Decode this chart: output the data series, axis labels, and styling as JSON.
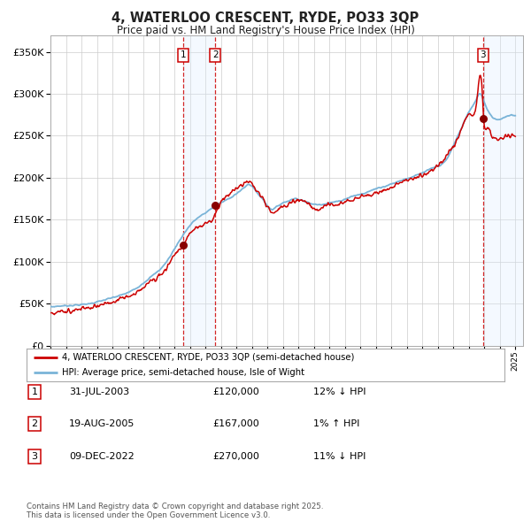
{
  "title": "4, WATERLOO CRESCENT, RYDE, PO33 3QP",
  "subtitle": "Price paid vs. HM Land Registry's House Price Index (HPI)",
  "sale_years_float": [
    2003.583,
    2005.633,
    2022.917
  ],
  "sale_prices": [
    120000,
    167000,
    270000
  ],
  "sale_labels": [
    "1",
    "2",
    "3"
  ],
  "sale_hpi_diff": [
    "12% ↓ HPI",
    "1% ↑ HPI",
    "11% ↓ HPI"
  ],
  "sale_display_dates": [
    "31-JUL-2003",
    "19-AUG-2005",
    "09-DEC-2022"
  ],
  "sale_prices_display": [
    "£120,000",
    "£167,000",
    "£270,000"
  ],
  "legend_line1": "4, WATERLOO CRESCENT, RYDE, PO33 3QP (semi-detached house)",
  "legend_line2": "HPI: Average price, semi-detached house, Isle of Wight",
  "footnote": "Contains HM Land Registry data © Crown copyright and database right 2025.\nThis data is licensed under the Open Government Licence v3.0.",
  "hpi_color": "#7ab4d8",
  "price_color": "#cc0000",
  "dot_color": "#880000",
  "vline_color": "#cc0000",
  "shade_color": "#ddeeff",
  "grid_color": "#cccccc",
  "bg_color": "#ffffff",
  "ylim": [
    0,
    370000
  ],
  "yticks": [
    0,
    50000,
    100000,
    150000,
    200000,
    250000,
    300000,
    350000
  ],
  "xlim_start": 1995.0,
  "xlim_end": 2025.5,
  "hpi_key_years": [
    1995.0,
    1996.0,
    1997.5,
    1999.0,
    2000.5,
    2001.5,
    2002.5,
    2003.0,
    2003.5,
    2004.0,
    2004.5,
    2005.0,
    2005.5,
    2006.0,
    2006.5,
    2007.0,
    2007.5,
    2007.8,
    2008.3,
    2008.8,
    2009.2,
    2009.8,
    2010.3,
    2010.8,
    2011.5,
    2012.2,
    2013.0,
    2013.8,
    2014.5,
    2015.2,
    2016.0,
    2016.8,
    2017.5,
    2018.2,
    2018.8,
    2019.5,
    2020.0,
    2020.5,
    2021.0,
    2021.5,
    2022.0,
    2022.4,
    2022.75,
    2023.0,
    2023.3,
    2023.7,
    2024.2,
    2024.7,
    2025.0
  ],
  "hpi_key_vals": [
    46000,
    47500,
    50000,
    57000,
    68000,
    82000,
    100000,
    115000,
    130000,
    143000,
    152000,
    158000,
    165000,
    170000,
    175000,
    181000,
    188000,
    192000,
    183000,
    172000,
    163000,
    168000,
    172000,
    175000,
    171000,
    168000,
    170000,
    173000,
    178000,
    181000,
    187000,
    191000,
    196000,
    200000,
    204000,
    210000,
    214000,
    220000,
    238000,
    258000,
    278000,
    290000,
    300000,
    290000,
    278000,
    270000,
    271000,
    274000,
    274000
  ],
  "price_key_years": [
    1995.0,
    1996.0,
    1997.5,
    1999.0,
    2000.5,
    2001.5,
    2002.5,
    2003.0,
    2003.5,
    2004.0,
    2004.5,
    2005.0,
    2005.5,
    2006.0,
    2006.5,
    2007.0,
    2007.5,
    2007.8,
    2008.3,
    2008.8,
    2009.2,
    2009.8,
    2010.3,
    2010.8,
    2011.5,
    2012.0,
    2012.5,
    2013.5,
    2014.5,
    2015.5,
    2016.5,
    2017.5,
    2018.5,
    2019.5,
    2020.5,
    2021.5,
    2022.0,
    2022.5,
    2022.85,
    2022.95,
    2023.2,
    2023.5,
    2023.8,
    2024.2,
    2024.7,
    2025.0
  ],
  "price_key_vals": [
    39000,
    41000,
    45000,
    52000,
    63000,
    77000,
    93000,
    108000,
    118000,
    133000,
    141000,
    145000,
    152000,
    170000,
    180000,
    187000,
    193000,
    196000,
    185000,
    173000,
    160000,
    163000,
    168000,
    172000,
    172000,
    162000,
    165000,
    168000,
    174000,
    179000,
    185000,
    193000,
    200000,
    207000,
    225000,
    256000,
    275000,
    290000,
    308000,
    275000,
    258000,
    250000,
    247000,
    248000,
    250000,
    249000
  ]
}
